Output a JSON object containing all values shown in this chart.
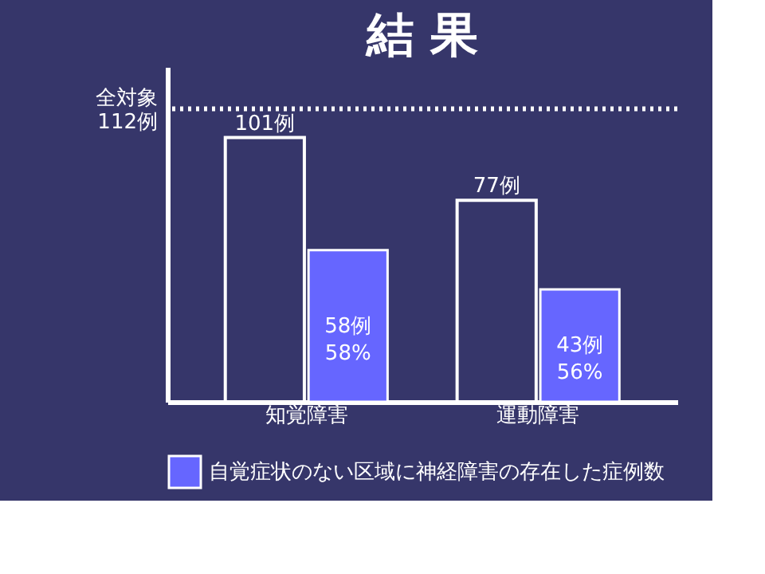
{
  "chart_data": {
    "type": "bar",
    "title": "結 果",
    "categories": [
      "知覚障害",
      "運動障害"
    ],
    "series": [
      {
        "color": "#ffffff",
        "values": [
          101,
          77
        ],
        "value_labels": [
          "101例",
          "77例"
        ]
      },
      {
        "name": "自覚症状のない区域に神経障害の存在した症例数",
        "color": "#6666ff",
        "values": [
          58,
          43
        ],
        "value_labels": [
          "58例\n58%",
          "43例\n56%"
        ]
      }
    ],
    "ylim": [
      0,
      128
    ],
    "tick_labels": "x",
    "legend": "bottom",
    "ref_lines": [
      {
        "axis": "y",
        "value": 112,
        "label": "全対象\n112例",
        "color": "#ffffff",
        "line_style": "dotted"
      }
    ]
  }
}
